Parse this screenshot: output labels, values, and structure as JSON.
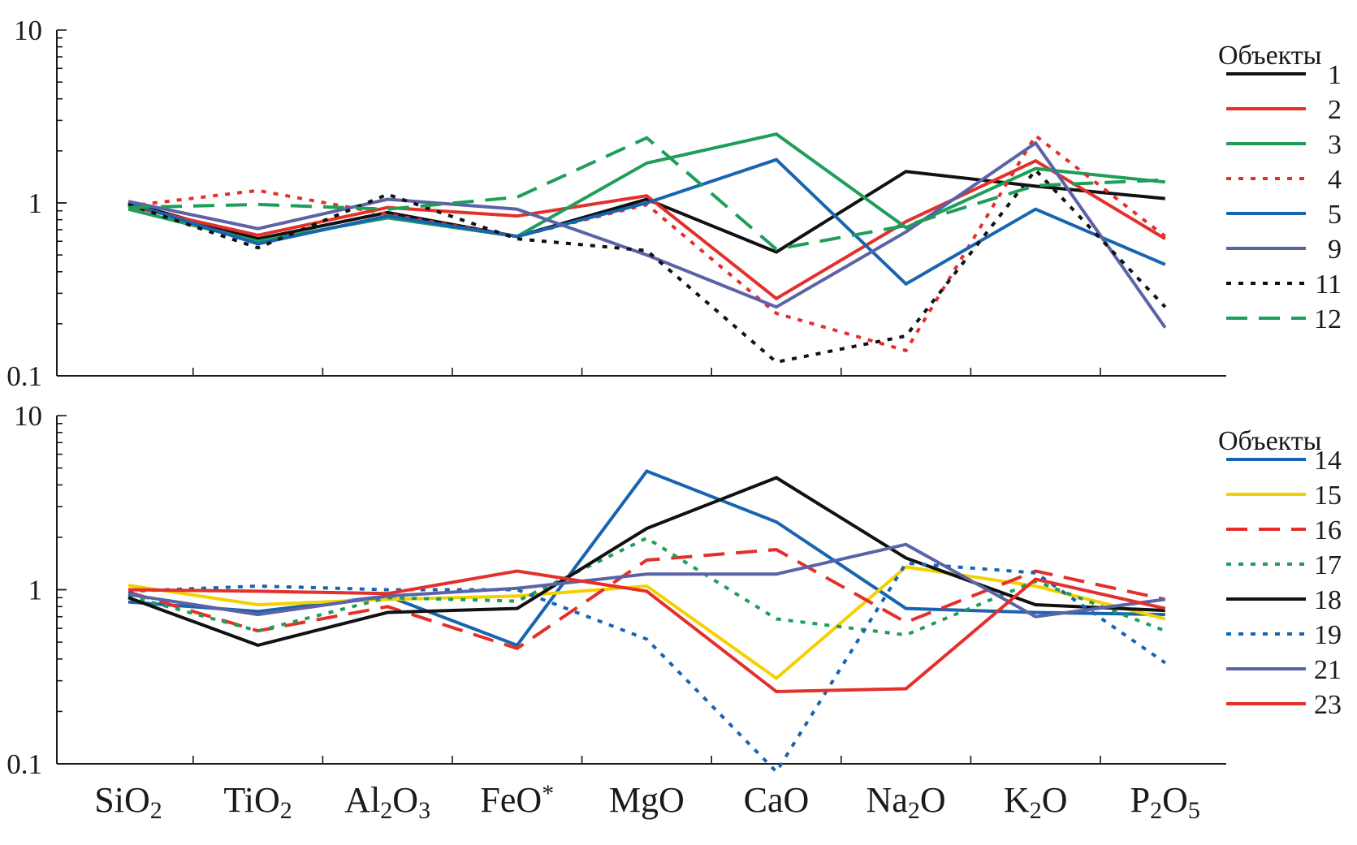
{
  "chart_data": [
    {
      "type": "line",
      "yscale": "log",
      "ylim": [
        0.1,
        10
      ],
      "ytick_labels": [
        "0.1",
        "1",
        "10"
      ],
      "categories": [
        "SiO2",
        "TiO2",
        "Al2O3",
        "FeO*",
        "MgO",
        "CaO",
        "Na2O",
        "K2O",
        "P2O5"
      ],
      "category_labels": [
        {
          "base": "SiO",
          "sub": "2"
        },
        {
          "base": "TiO",
          "sub": "2"
        },
        {
          "base": "Al",
          "sub": "2",
          "base2": "O",
          "sub2": "3"
        },
        {
          "base": "FeO",
          "sup": "*"
        },
        {
          "base": "MgO"
        },
        {
          "base": "CaO"
        },
        {
          "base": "Na",
          "sub": "2",
          "base2": "O"
        },
        {
          "base": "K",
          "sub": "2",
          "base2": "O"
        },
        {
          "base": "P",
          "sub": "2",
          "base2": "O",
          "sub2": "5"
        }
      ],
      "legend_title": "Объекты",
      "legend_placement": "right",
      "series": [
        {
          "name": "1",
          "color": "#111111",
          "style": "solid",
          "values": [
            1.0,
            0.62,
            0.88,
            0.64,
            1.05,
            0.52,
            1.52,
            1.25,
            1.06
          ]
        },
        {
          "name": "2",
          "color": "#e3302b",
          "style": "solid",
          "values": [
            0.96,
            0.65,
            0.94,
            0.84,
            1.1,
            0.28,
            0.78,
            1.75,
            0.62
          ]
        },
        {
          "name": "3",
          "color": "#1f9e5a",
          "style": "solid",
          "values": [
            0.92,
            0.6,
            0.82,
            0.64,
            1.7,
            2.5,
            0.72,
            1.58,
            1.32
          ]
        },
        {
          "name": "4",
          "color": "#e3302b",
          "style": "dotted",
          "values": [
            0.96,
            1.18,
            0.86,
            0.64,
            0.98,
            0.23,
            0.14,
            2.45,
            0.64
          ]
        },
        {
          "name": "5",
          "color": "#1764b0",
          "style": "solid",
          "values": [
            1.0,
            0.58,
            0.84,
            0.64,
            1.0,
            1.78,
            0.34,
            0.92,
            0.44
          ]
        },
        {
          "name": "9",
          "color": "#5b63a8",
          "style": "solid",
          "values": [
            1.02,
            0.71,
            1.05,
            0.92,
            0.5,
            0.25,
            0.68,
            2.22,
            0.19
          ]
        },
        {
          "name": "11",
          "color": "#111111",
          "style": "dotted",
          "values": [
            0.98,
            0.55,
            1.12,
            0.62,
            0.53,
            0.12,
            0.17,
            1.55,
            0.25
          ]
        },
        {
          "name": "12",
          "color": "#1f9e5a",
          "style": "dashed",
          "values": [
            0.94,
            0.98,
            0.92,
            1.08,
            2.38,
            0.54,
            0.74,
            1.26,
            1.36
          ]
        }
      ]
    },
    {
      "type": "line",
      "yscale": "log",
      "ylim": [
        0.1,
        10
      ],
      "ytick_labels": [
        "0.1",
        "1",
        "10"
      ],
      "categories": [
        "SiO2",
        "TiO2",
        "Al2O3",
        "FeO*",
        "MgO",
        "CaO",
        "Na2O",
        "K2O",
        "P2O5"
      ],
      "category_labels": [
        {
          "base": "SiO",
          "sub": "2"
        },
        {
          "base": "TiO",
          "sub": "2"
        },
        {
          "base": "Al",
          "sub": "2",
          "base2": "O",
          "sub2": "3"
        },
        {
          "base": "FeO",
          "sup": "*"
        },
        {
          "base": "MgO"
        },
        {
          "base": "CaO"
        },
        {
          "base": "Na",
          "sub": "2",
          "base2": "O"
        },
        {
          "base": "K",
          "sub": "2",
          "base2": "O"
        },
        {
          "base": "P",
          "sub": "2",
          "base2": "O",
          "sub2": "5"
        }
      ],
      "legend_title": "Объекты",
      "legend_placement": "right",
      "series": [
        {
          "name": "14",
          "color": "#1764b0",
          "style": "solid",
          "values": [
            0.85,
            0.75,
            0.92,
            0.48,
            4.8,
            2.45,
            0.78,
            0.74,
            0.72
          ]
        },
        {
          "name": "15",
          "color": "#f5d000",
          "style": "solid",
          "values": [
            1.06,
            0.82,
            0.88,
            0.92,
            1.05,
            0.31,
            1.35,
            1.05,
            0.68
          ]
        },
        {
          "name": "16",
          "color": "#e3302b",
          "style": "dashed",
          "values": [
            0.97,
            0.58,
            0.8,
            0.46,
            1.48,
            1.7,
            0.65,
            1.28,
            0.88
          ]
        },
        {
          "name": "17",
          "color": "#1f9e5a",
          "style": "dotted",
          "values": [
            0.92,
            0.58,
            0.9,
            0.86,
            1.98,
            0.68,
            0.55,
            1.12,
            0.58
          ]
        },
        {
          "name": "18",
          "color": "#111111",
          "style": "solid",
          "values": [
            0.9,
            0.48,
            0.74,
            0.78,
            2.25,
            4.4,
            1.52,
            0.82,
            0.76
          ]
        },
        {
          "name": "19",
          "color": "#1764b0",
          "style": "dotted",
          "values": [
            0.98,
            1.05,
            1.0,
            1.0,
            0.52,
            0.09,
            1.42,
            1.25,
            0.38
          ]
        },
        {
          "name": "21",
          "color": "#5b63a8",
          "style": "solid",
          "values": [
            0.94,
            0.72,
            0.92,
            1.02,
            1.23,
            1.23,
            1.82,
            0.7,
            0.88
          ]
        },
        {
          "name": "23",
          "color": "#e3302b",
          "style": "solid",
          "values": [
            1.0,
            0.98,
            0.95,
            1.28,
            0.98,
            0.26,
            0.27,
            1.15,
            0.78
          ]
        }
      ]
    }
  ]
}
